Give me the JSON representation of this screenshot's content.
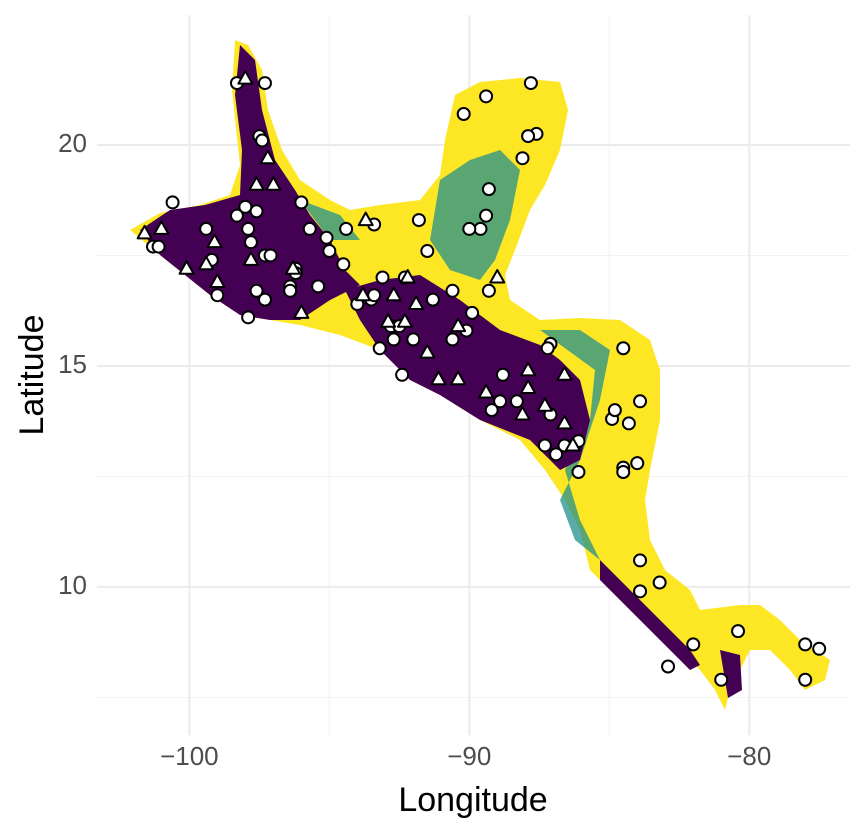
{
  "chart_data": {
    "type": "scatter",
    "x_label": "Longitude",
    "y_label": "Latitude",
    "xlim": [
      -103.3,
      -76.4
    ],
    "ylim": [
      6.65,
      22.94
    ],
    "xticks": [
      {
        "value": -100,
        "label": "−100"
      },
      {
        "value": -90,
        "label": "−90"
      },
      {
        "value": -80,
        "label": "−80"
      }
    ],
    "yticks": [
      10,
      15,
      20
    ],
    "xminor": [
      -95,
      -85
    ],
    "yminor": [
      7.5,
      12.5,
      17.5
    ],
    "grid": true,
    "series": [
      {
        "shape": "circle",
        "color": "#ffffff",
        "x": [
          -98.3,
          -97.3,
          -87.8,
          -89.4,
          -90.2,
          -97.5,
          -97.4,
          -87.6,
          -87.9,
          -88.1,
          -89.3,
          -100.6,
          -96.0,
          -98.0,
          -98.3,
          -97.6,
          -91.8,
          -89.4,
          -89.6,
          -90.0,
          -99.4,
          -93.4,
          -94.4,
          -95.7,
          -97.9,
          -95.1,
          -101.3,
          -101.1,
          -97.3,
          -97.1,
          -97.8,
          -95.0,
          -91.5,
          -99.2,
          -94.5,
          -96.2,
          -96.2,
          -93.1,
          -92.3,
          -99.0,
          -95.4,
          -96.4,
          -96.4,
          -94.0,
          -93.5,
          -91.3,
          -90.6,
          -89.3,
          -90.1,
          -97.9,
          -97.3,
          -97.6,
          -93.4,
          -89.9,
          -92.8,
          -92.5,
          -93.2,
          -90.6,
          -92.0,
          -92.7,
          -87.1,
          -87.2,
          -92.4,
          -84.5,
          -88.8,
          -89.2,
          -88.9,
          -88.3,
          -87.1,
          -87.3,
          -86.9,
          -86.6,
          -86.1,
          -86.1,
          -84.9,
          -84.8,
          -84.3,
          -83.9,
          -84.5,
          -84.0,
          -84.5,
          -83.9,
          -83.2,
          -83.9,
          -82.0,
          -80.4,
          -82.9,
          -81.0,
          -78.0,
          -77.5,
          -78.0
        ],
        "y": [
          21.4,
          21.4,
          21.4,
          21.1,
          20.7,
          20.2,
          20.1,
          20.25,
          20.2,
          19.7,
          19.0,
          18.7,
          18.7,
          18.6,
          18.4,
          18.5,
          18.3,
          18.4,
          18.1,
          18.1,
          18.1,
          18.2,
          18.1,
          18.1,
          18.1,
          17.9,
          17.7,
          17.7,
          17.5,
          17.5,
          17.8,
          17.6,
          17.6,
          17.4,
          17.3,
          17.2,
          17.1,
          17.0,
          17.0,
          16.6,
          16.8,
          16.8,
          16.7,
          16.4,
          16.5,
          16.5,
          16.7,
          16.7,
          15.8,
          16.1,
          16.5,
          16.7,
          16.6,
          16.2,
          15.9,
          15.9,
          15.4,
          15.6,
          15.6,
          15.6,
          15.5,
          15.4,
          14.8,
          15.4,
          14.8,
          14.0,
          14.2,
          14.2,
          13.9,
          13.2,
          13.0,
          13.2,
          13.3,
          12.6,
          13.8,
          14.0,
          13.7,
          14.2,
          12.7,
          12.8,
          12.6,
          10.6,
          10.1,
          9.9,
          8.7,
          9.0,
          8.2,
          7.9,
          8.7,
          8.6,
          7.9
        ]
      },
      {
        "shape": "triangle",
        "color": "#ffffff",
        "x": [
          -98.0,
          -97.2,
          -97.6,
          -97.0,
          -93.7,
          -101.6,
          -101.0,
          -99.1,
          -100.1,
          -99.4,
          -97.8,
          -99.0,
          -96.0,
          -96.3,
          -93.8,
          -92.9,
          -92.7,
          -91.9,
          -92.3,
          -92.2,
          -90.4,
          -91.5,
          -91.1,
          -90.4,
          -89.0,
          -87.9,
          -87.9,
          -89.4,
          -87.3,
          -88.1,
          -86.6,
          -86.6,
          -86.3
        ],
        "y": [
          21.5,
          19.7,
          19.1,
          19.1,
          18.3,
          18.0,
          18.1,
          17.8,
          17.2,
          17.3,
          17.4,
          16.9,
          16.2,
          17.2,
          16.6,
          16.0,
          16.6,
          16.4,
          16.0,
          17.0,
          15.9,
          15.3,
          14.7,
          14.7,
          17.0,
          14.5,
          14.9,
          14.4,
          14.1,
          13.9,
          14.8,
          13.7,
          13.2
        ]
      }
    ]
  }
}
